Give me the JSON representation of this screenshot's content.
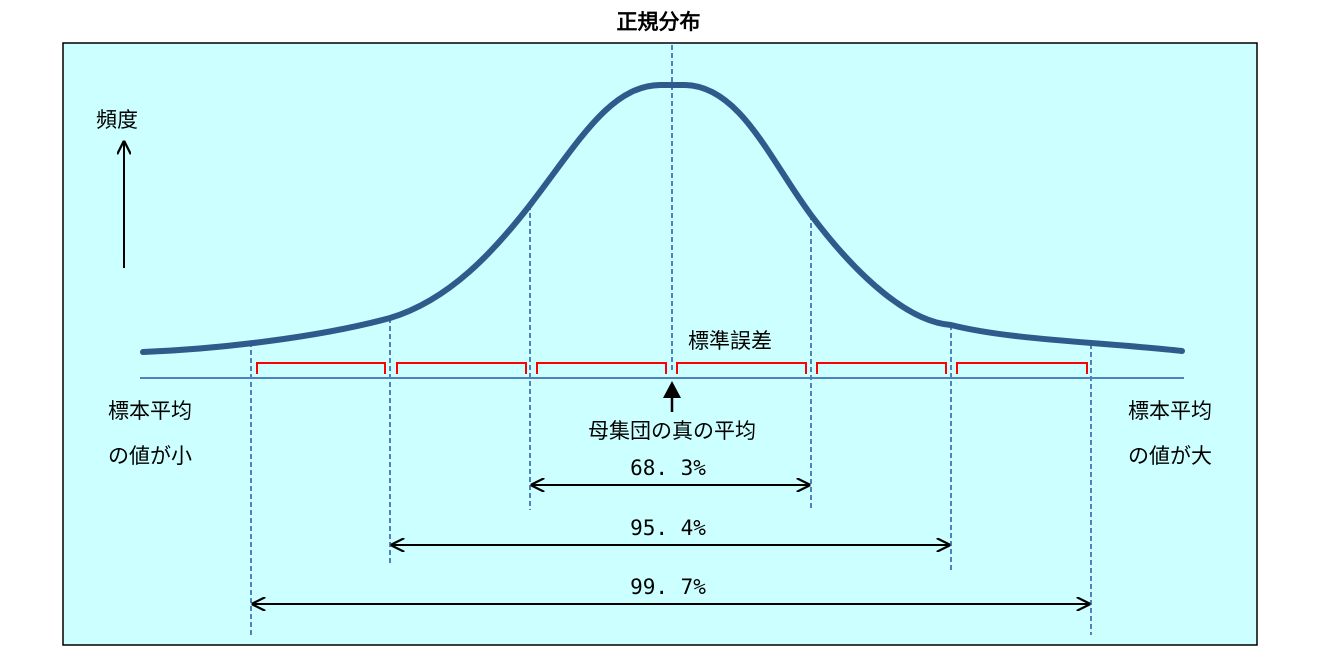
{
  "title": "正規分布",
  "y_axis_label": "頻度",
  "standard_error_label": "標準誤差",
  "population_mean_label": "母集団の真の平均",
  "left_label": {
    "line1": "標本平均",
    "line2": "の値が小"
  },
  "right_label": {
    "line1": "標本平均",
    "line2": "の値が大"
  },
  "ranges": [
    {
      "label": "68. 3%",
      "sigma": 1
    },
    {
      "label": "95. 4%",
      "sigma": 2
    },
    {
      "label": "99. 7%",
      "sigma": 3
    }
  ],
  "colors": {
    "background": "#ccffff",
    "curve": "#2f5b8c",
    "guide": "#4f81bd",
    "bracket": "#ff0000",
    "baseline": "#4f81bd",
    "frame": "#000000"
  }
}
